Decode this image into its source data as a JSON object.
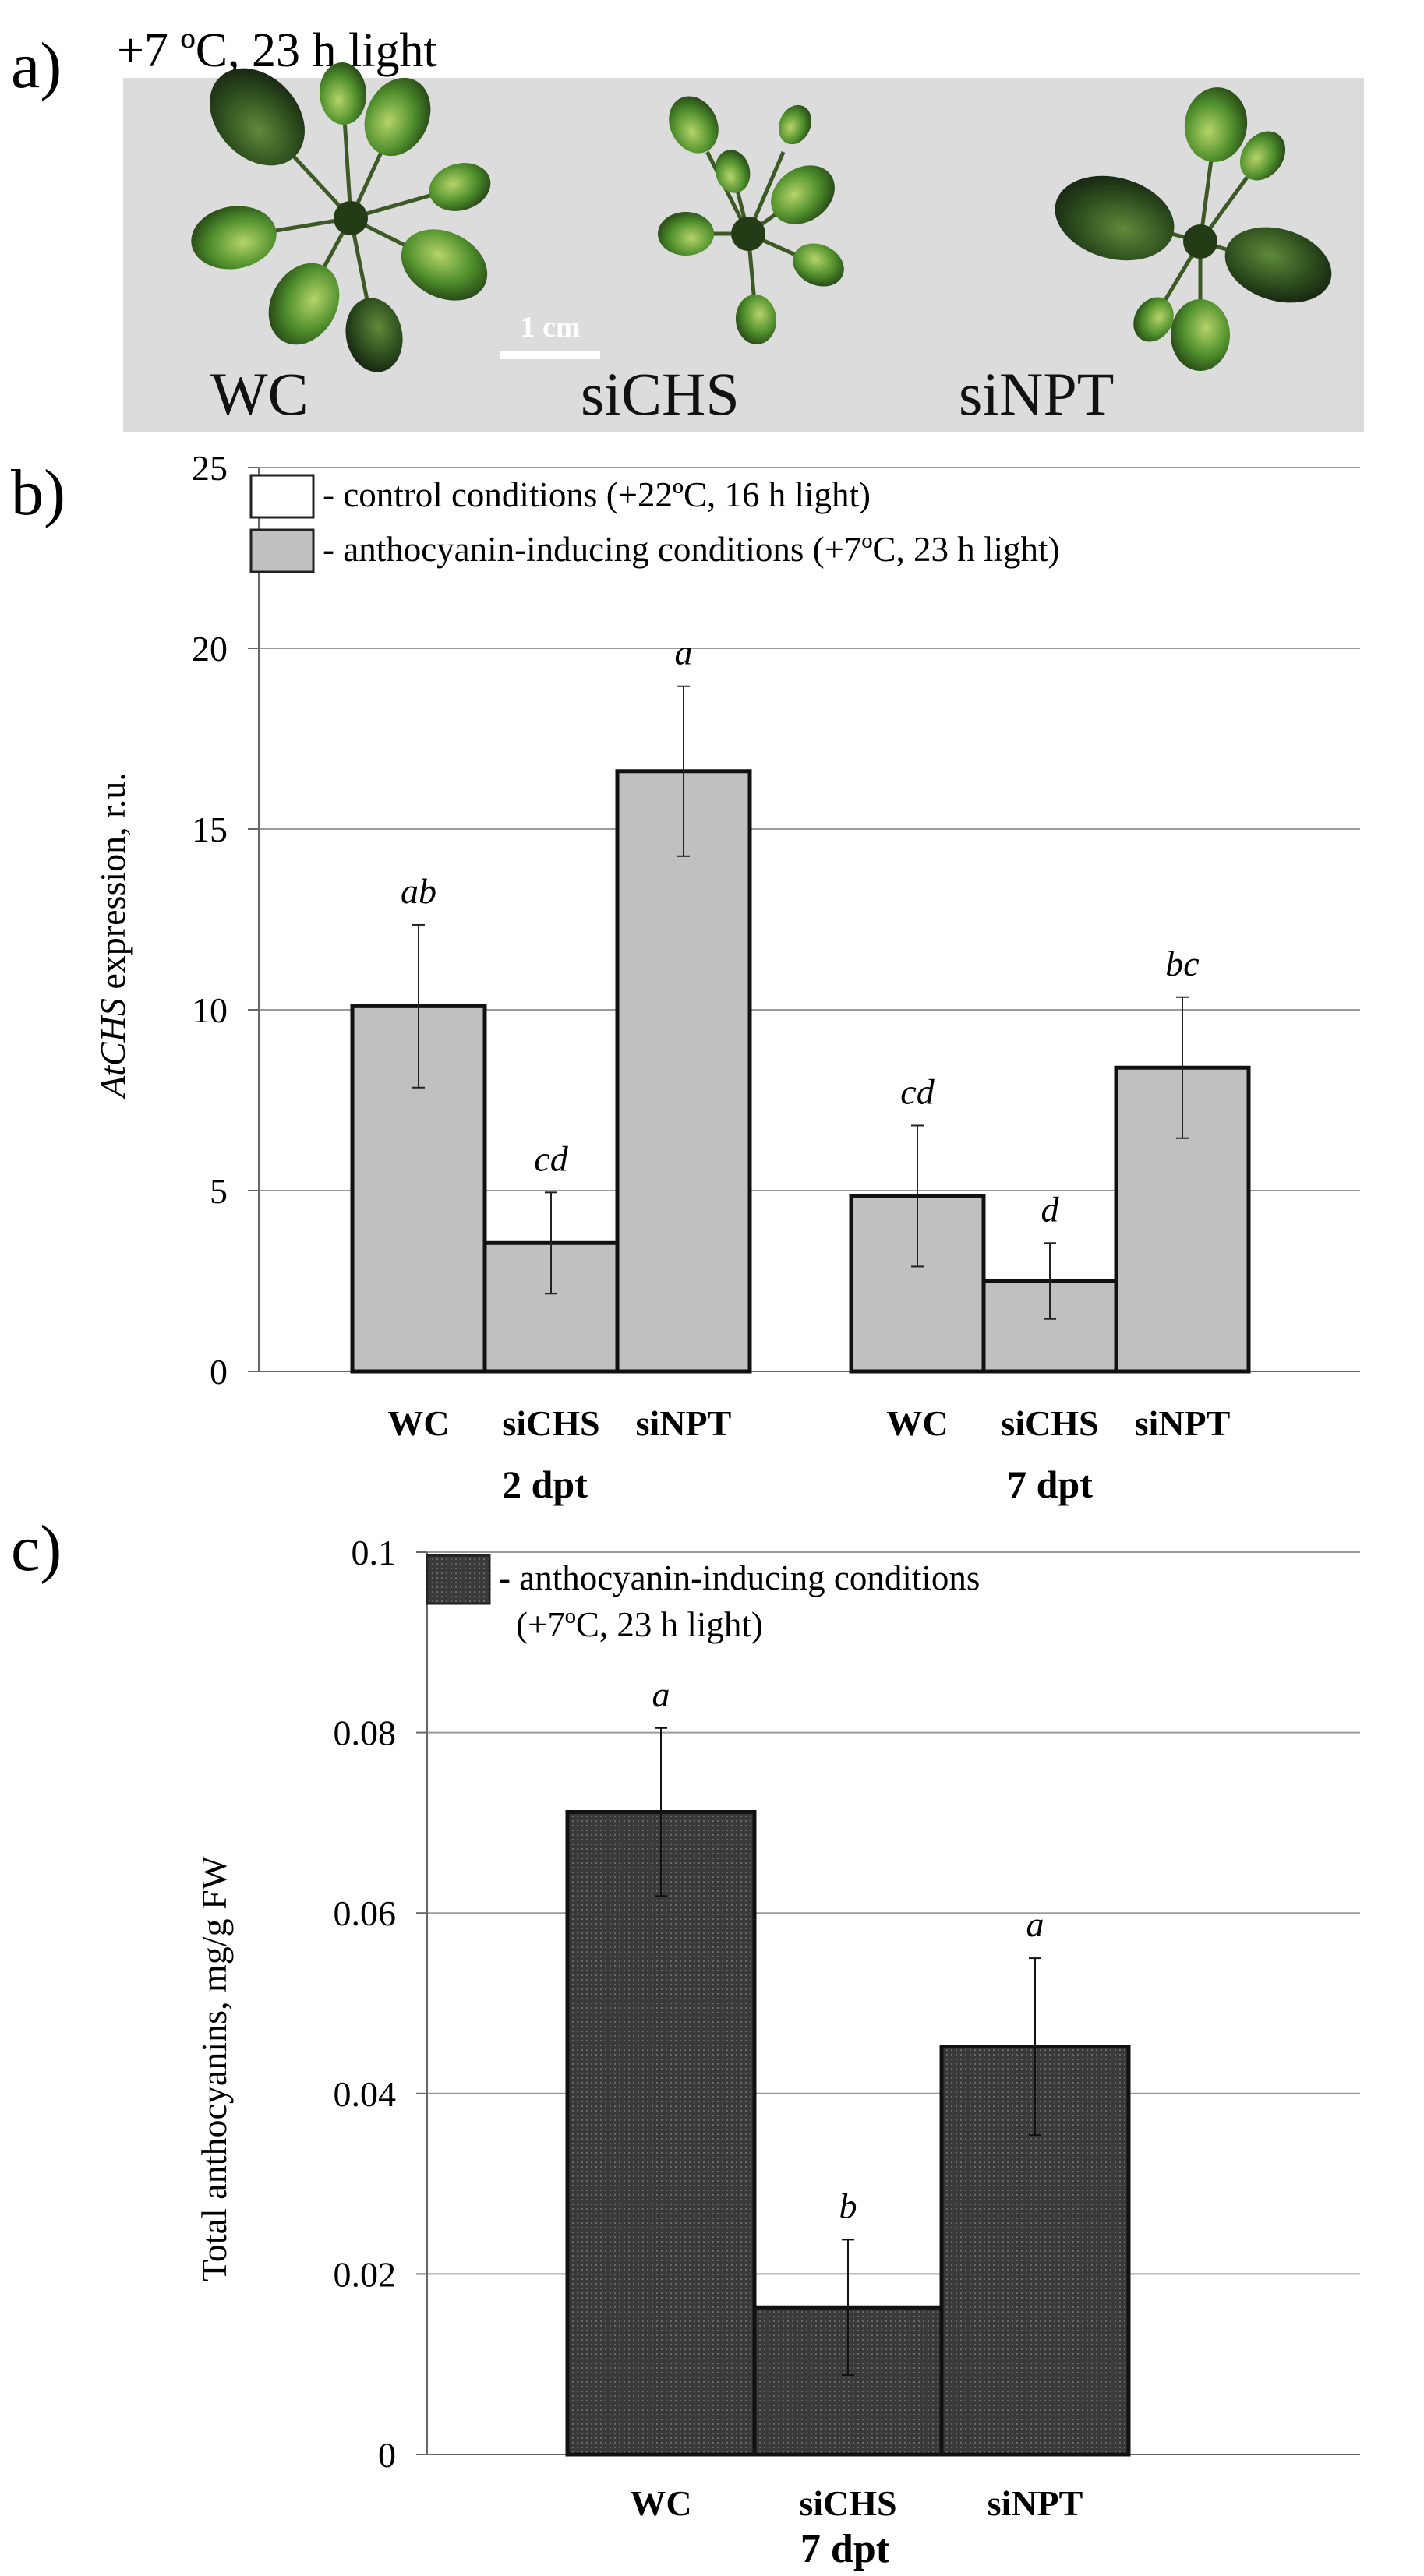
{
  "panel_a": {
    "label": "a)",
    "title": "+7 ºC, 23 h light",
    "scale_bar": "1 cm",
    "plants": [
      "WC",
      "siCHS",
      "siNPT"
    ]
  },
  "panel_b": {
    "label": "b)",
    "legend": [
      "- control conditions (+22ºC, 16 h light)",
      "- anthocyanin-inducing conditions (+7ºC, 23 h light)"
    ]
  },
  "panel_c": {
    "label": "c)",
    "legend": [
      "- anthocyanin-inducing conditions",
      "(+7ºC, 23 h light)"
    ]
  },
  "colors": {
    "bar_b": "#c0c0c0",
    "bar_c": "#3a3a3a",
    "grid": "#9a9a9a",
    "axis": "#666666"
  },
  "chart_data": [
    {
      "type": "bar",
      "title": "",
      "ylabel_italic": "AtCHS",
      "ylabel_rest": " expression,  r.u.",
      "ylim": [
        0,
        25
      ],
      "yticks": [
        "0",
        "5",
        "10",
        "15",
        "20",
        "25"
      ],
      "grid": true,
      "groups": [
        {
          "label": "2 dpt",
          "categories": [
            "WC",
            "siCHS",
            "siNPT"
          ],
          "values": [
            10.1,
            3.55,
            16.6
          ],
          "errors": [
            2.25,
            1.4,
            2.35
          ],
          "letters": [
            "ab",
            "cd",
            "a"
          ]
        },
        {
          "label": "7 dpt",
          "categories": [
            "WC",
            "siCHS",
            "siNPT"
          ],
          "values": [
            4.85,
            2.5,
            8.4
          ],
          "errors": [
            1.95,
            1.05,
            1.95
          ],
          "letters": [
            "cd",
            "d",
            "bc"
          ]
        }
      ]
    },
    {
      "type": "bar",
      "title": "",
      "ylabel": "Total anthocyanins,  mg/g FW",
      "xlabel": "7 dpt",
      "ylim": [
        0,
        0.1
      ],
      "yticks": [
        "0",
        "0.02",
        "0.04",
        "0.06",
        "0.08",
        "0.1"
      ],
      "grid": true,
      "categories": [
        "WC",
        "siCHS",
        "siNPT"
      ],
      "values": [
        0.0712,
        0.0163,
        0.0452
      ],
      "errors": [
        0.0093,
        0.0075,
        0.0098
      ],
      "letters": [
        "a",
        "b",
        "a"
      ]
    }
  ]
}
